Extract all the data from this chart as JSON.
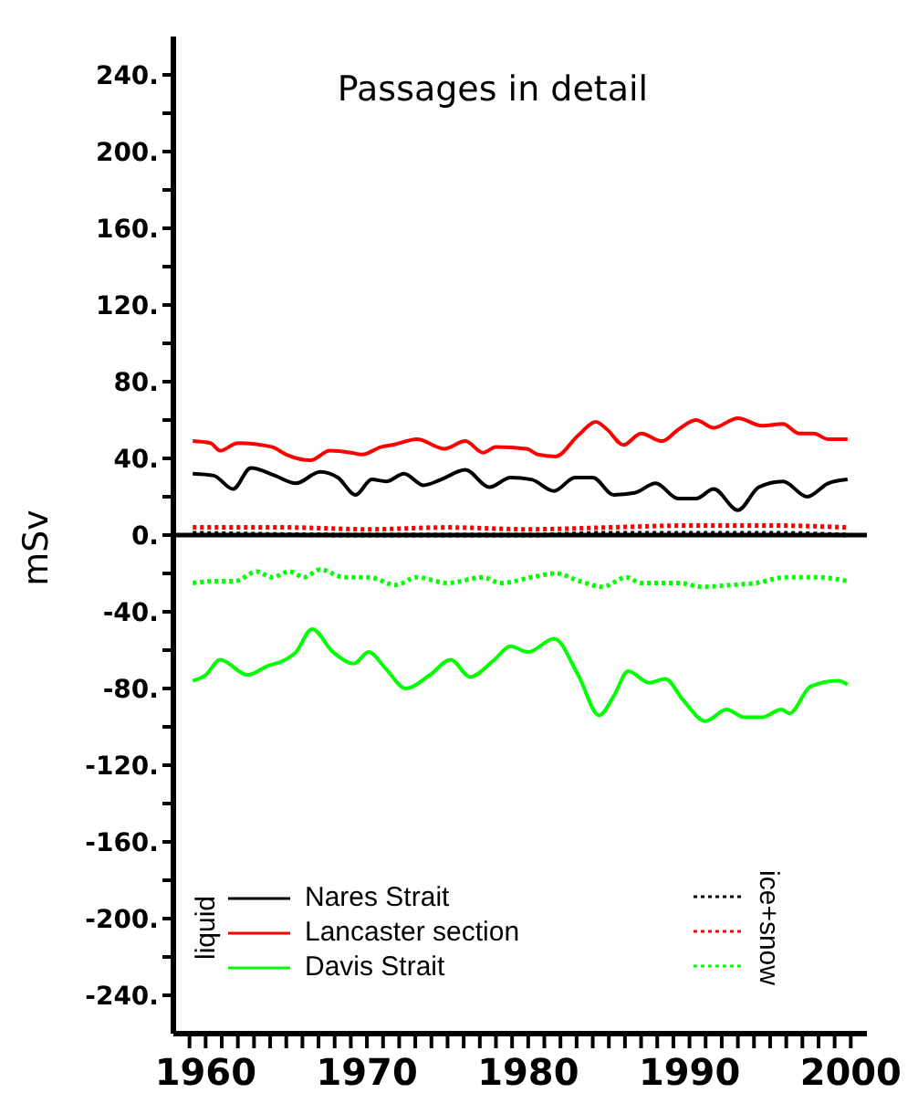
{
  "chart_data": {
    "type": "line",
    "title": "Passages in detail",
    "ylabel": "mSv",
    "annotations": [
      "liquid",
      "ice+snow"
    ],
    "legend": "bottom left",
    "xlim": [
      1958,
      2001
    ],
    "xticks": [
      {
        "value": 1959,
        "label": null
      },
      1960,
      {
        "value": 1961,
        "label": null
      },
      {
        "value": 1962,
        "label": null
      },
      {
        "value": 1963,
        "label": null
      },
      {
        "value": 1964,
        "label": null
      },
      {
        "value": 1965,
        "label": null
      },
      {
        "value": 1966,
        "label": null
      },
      {
        "value": 1967,
        "label": null
      },
      {
        "value": 1968,
        "label": null
      },
      {
        "value": 1969,
        "label": null
      },
      1970,
      {
        "value": 1971,
        "label": null
      },
      {
        "value": 1972,
        "label": null
      },
      {
        "value": 1973,
        "label": null
      },
      {
        "value": 1974,
        "label": null
      },
      {
        "value": 1975,
        "label": null
      },
      {
        "value": 1976,
        "label": null
      },
      {
        "value": 1977,
        "label": null
      },
      {
        "value": 1978,
        "label": null
      },
      {
        "value": 1979,
        "label": null
      },
      1980,
      {
        "value": 1981,
        "label": null
      },
      {
        "value": 1982,
        "label": null
      },
      {
        "value": 1983,
        "label": null
      },
      {
        "value": 1984,
        "label": null
      },
      {
        "value": 1985,
        "label": null
      },
      {
        "value": 1986,
        "label": null
      },
      {
        "value": 1987,
        "label": null
      },
      {
        "value": 1988,
        "label": null
      },
      {
        "value": 1989,
        "label": null
      },
      1990,
      {
        "value": 1991,
        "label": null
      },
      {
        "value": 1992,
        "label": null
      },
      {
        "value": 1993,
        "label": null
      },
      {
        "value": 1994,
        "label": null
      },
      {
        "value": 1995,
        "label": null
      },
      {
        "value": 1996,
        "label": null
      },
      {
        "value": 1997,
        "label": null
      },
      {
        "value": 1998,
        "label": null
      },
      {
        "value": 1999,
        "label": null
      },
      2000
    ],
    "ylim": [
      -260,
      260
    ],
    "yticks": [
      {
        "value": -240,
        "label": "-240."
      },
      {
        "value": -220,
        "label": null
      },
      {
        "value": -200,
        "label": "-200."
      },
      {
        "value": -180,
        "label": null
      },
      {
        "value": -160,
        "label": "-160."
      },
      {
        "value": -140,
        "label": null
      },
      {
        "value": -120,
        "label": "-120."
      },
      {
        "value": -100,
        "label": null
      },
      {
        "value": -80,
        "label": "-80."
      },
      {
        "value": -60,
        "label": null
      },
      {
        "value": -40,
        "label": "-40."
      },
      {
        "value": -20,
        "label": null
      },
      {
        "value": 0,
        "label": "0."
      },
      {
        "value": 20,
        "label": null
      },
      {
        "value": 40,
        "label": "40."
      },
      {
        "value": 60,
        "label": null
      },
      {
        "value": 80,
        "label": "80."
      },
      {
        "value": 100,
        "label": null
      },
      {
        "value": 120,
        "label": "120."
      },
      {
        "value": 140,
        "label": null
      },
      {
        "value": 160,
        "label": "160."
      },
      {
        "value": 180,
        "label": null
      },
      {
        "value": 200,
        "label": "200."
      },
      {
        "value": 220,
        "label": null
      },
      {
        "value": 240,
        "label": "240."
      }
    ],
    "ref_lines": [
      {
        "axis": "y",
        "value": 0,
        "color": "#000000"
      }
    ],
    "series": [
      {
        "name": "Nares Strait",
        "color": "#000000",
        "line_style": "solid",
        "x": [
          1959.2,
          1960.5,
          1961.7,
          1962.8,
          1964.3,
          1965.6,
          1967.1,
          1968.2,
          1969.3,
          1970.3,
          1971.2,
          1972.3,
          1973.5,
          1974.6,
          1976.1,
          1977.6,
          1978.9,
          1980.2,
          1981.6,
          1982.9,
          1984,
          1985.3,
          1986.6,
          1987.9,
          1989.3,
          1990.4,
          1991.5,
          1993,
          1994.3,
          1995.8,
          1997.3,
          1998.6,
          1999.8
        ],
        "values": [
          32,
          31,
          24,
          35,
          31,
          27,
          33,
          30,
          21,
          29,
          28,
          32,
          26,
          29,
          34,
          25,
          30,
          29,
          23,
          30,
          30,
          21,
          22,
          27,
          19,
          19,
          24,
          13,
          25,
          28,
          20,
          27,
          29
        ]
      },
      {
        "name": "Lancaster section",
        "color": "#ff0000",
        "line_style": "solid",
        "x": [
          1959.2,
          1960.3,
          1960.9,
          1962,
          1964.1,
          1965,
          1966.5,
          1967.7,
          1969,
          1969.7,
          1970.9,
          1971.6,
          1973.1,
          1974.8,
          1976.1,
          1977.2,
          1978,
          1979.9,
          1980.6,
          1981.7,
          1983.1,
          1984.2,
          1984.9,
          1985.9,
          1987,
          1988.3,
          1989.3,
          1990.4,
          1991.5,
          1993,
          1994.5,
          1995.8,
          1996.8,
          1997.7,
          1998.6,
          1999.8
        ],
        "values": [
          49,
          48,
          44,
          48,
          46,
          42,
          39,
          44,
          43,
          42,
          46,
          47,
          50,
          45,
          49,
          43,
          46,
          45,
          42,
          41,
          52,
          59,
          55,
          47,
          53,
          49,
          55,
          60,
          56,
          61,
          57,
          58,
          53,
          53,
          50,
          50
        ]
      },
      {
        "name": "Davis Strait",
        "color": "#00ff00",
        "line_style": "solid",
        "x": [
          1959.2,
          1960,
          1960.9,
          1962.6,
          1963.9,
          1964.7,
          1965.6,
          1966.6,
          1967.9,
          1969.2,
          1970.1,
          1971.2,
          1972.4,
          1973.9,
          1975.2,
          1976.4,
          1977.9,
          1978.9,
          1980,
          1981.6,
          1983.1,
          1984.4,
          1985.3,
          1986.2,
          1987.5,
          1988.5,
          1989.6,
          1991,
          1992.3,
          1993.4,
          1994.5,
          1995.7,
          1996.2,
          1997.5,
          1999.2,
          1999.8
        ],
        "values": [
          -76,
          -73,
          -65,
          -73,
          -68,
          -66,
          -61,
          -49,
          -61,
          -67,
          -61,
          -70,
          -80,
          -73,
          -65,
          -74,
          -65,
          -58,
          -61,
          -54,
          -73,
          -94,
          -84,
          -71,
          -77,
          -75,
          -86,
          -97,
          -91,
          -95,
          -95,
          -91,
          -93,
          -79,
          -76,
          -78
        ]
      },
      {
        "color": "#000000",
        "line_style": "dotted",
        "x": [
          1959.2,
          1970,
          1980,
          1985,
          1990,
          1995,
          1999.8
        ],
        "values": [
          1,
          0,
          0,
          1,
          1,
          1,
          0
        ]
      },
      {
        "color": "#ff0000",
        "line_style": "dotted",
        "x": [
          1959.2,
          1965,
          1970,
          1975,
          1980,
          1985,
          1990,
          1995,
          1999.8
        ],
        "values": [
          4,
          4,
          3,
          4,
          3,
          4,
          5,
          5,
          4
        ]
      },
      {
        "color": "#00ff00",
        "line_style": "dotted",
        "x": [
          1959.2,
          1960.7,
          1961.8,
          1963.2,
          1964.1,
          1965.2,
          1966.1,
          1967.1,
          1968.6,
          1970.1,
          1971.8,
          1973.1,
          1975,
          1977.2,
          1978.3,
          1980.2,
          1981.7,
          1983.2,
          1984.6,
          1986.1,
          1987,
          1989.3,
          1990.8,
          1992.6,
          1994.1,
          1996,
          1997.9,
          1999.8
        ],
        "values": [
          -25,
          -24,
          -24,
          -19,
          -22,
          -19,
          -22,
          -18,
          -22,
          -22,
          -26,
          -22,
          -25,
          -22,
          -25,
          -22,
          -20,
          -24,
          -27,
          -22,
          -25,
          -25,
          -27,
          -26,
          -25,
          -22,
          -22,
          -24
        ]
      }
    ]
  }
}
